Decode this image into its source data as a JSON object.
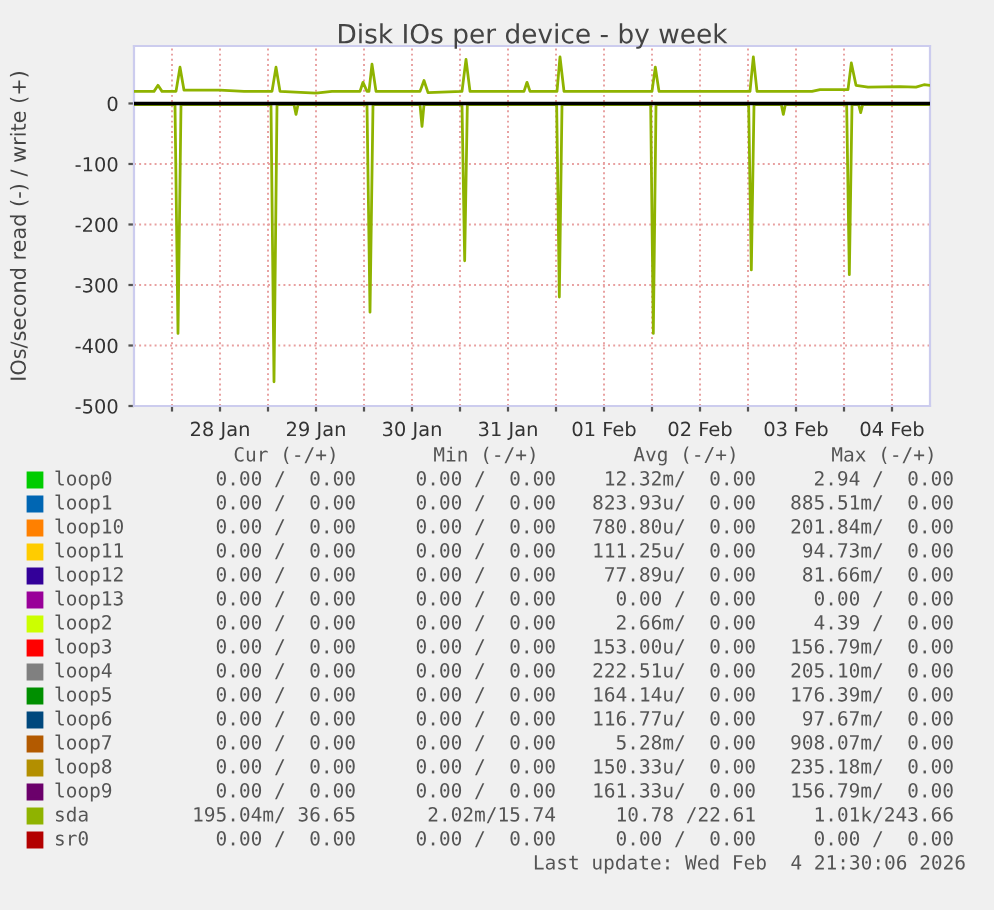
{
  "chart_data": {
    "type": "line",
    "title": "Disk IOs per device - by week",
    "ylabel": "IOs/second read (-) / write (+)",
    "xlim": [
      "2026-01-27T14:30",
      "2026-02-04T21:30"
    ],
    "xticks": [
      {
        "value": "2026-01-28T00:00",
        "label": null
      },
      {
        "value": "2026-01-28T12:00",
        "label": "28 Jan"
      },
      {
        "value": "2026-01-29T00:00",
        "label": null
      },
      {
        "value": "2026-01-29T12:00",
        "label": "29 Jan"
      },
      {
        "value": "2026-01-30T00:00",
        "label": null
      },
      {
        "value": "2026-01-30T12:00",
        "label": "30 Jan"
      },
      {
        "value": "2026-01-31T00:00",
        "label": null
      },
      {
        "value": "2026-01-31T12:00",
        "label": "31 Jan"
      },
      {
        "value": "2026-02-01T00:00",
        "label": null
      },
      {
        "value": "2026-02-01T12:00",
        "label": "01 Feb"
      },
      {
        "value": "2026-02-02T00:00",
        "label": null
      },
      {
        "value": "2026-02-02T12:00",
        "label": "02 Feb"
      },
      {
        "value": "2026-02-03T00:00",
        "label": null
      },
      {
        "value": "2026-02-03T12:00",
        "label": "03 Feb"
      },
      {
        "value": "2026-02-04T00:00",
        "label": null
      },
      {
        "value": "2026-02-04T12:00",
        "label": "04 Feb"
      }
    ],
    "ylim": [
      -500,
      95
    ],
    "yticks": [
      -500,
      -400,
      -300,
      -200,
      -100,
      0
    ],
    "grid": true,
    "legend": "bottom",
    "marker": "none",
    "line_style": "solid",
    "ref_lines": [
      {
        "axis": "y",
        "value": 0,
        "color": "#000000"
      }
    ],
    "series": [
      {
        "name": "loop0",
        "color": "#00cc00"
      },
      {
        "name": "loop1",
        "color": "#0066b3"
      },
      {
        "name": "loop10",
        "color": "#ff8000"
      },
      {
        "name": "loop11",
        "color": "#ffcc00"
      },
      {
        "name": "loop12",
        "color": "#330099"
      },
      {
        "name": "loop13",
        "color": "#990099"
      },
      {
        "name": "loop2",
        "color": "#ccff00"
      },
      {
        "name": "loop3",
        "color": "#ff0000"
      },
      {
        "name": "loop4",
        "color": "#808080"
      },
      {
        "name": "loop5",
        "color": "#008f00"
      },
      {
        "name": "loop6",
        "color": "#00487d"
      },
      {
        "name": "loop7",
        "color": "#b35a00"
      },
      {
        "name": "loop8",
        "color": "#b38f00"
      },
      {
        "name": "loop9",
        "color": "#6b006b"
      },
      {
        "name": "sda",
        "color": "#8fb300",
        "x": [
          "2026-01-27T14:30",
          "2026-01-28T00:45",
          "2026-01-28T01:30",
          "2026-01-28T02:15",
          "2026-01-29T00:45",
          "2026-01-29T01:30",
          "2026-01-29T02:15",
          "2026-01-29T06:30",
          "2026-01-29T07:00",
          "2026-01-29T07:30",
          "2026-01-30T00:45",
          "2026-01-30T01:30",
          "2026-01-30T02:15",
          "2026-01-30T14:00",
          "2026-01-30T14:30",
          "2026-01-30T15:00",
          "2026-01-31T00:30",
          "2026-01-31T01:10",
          "2026-01-31T01:50",
          "2026-02-01T00:10",
          "2026-02-01T00:50",
          "2026-02-01T01:30",
          "2026-02-01T23:40",
          "2026-02-02T00:20",
          "2026-02-02T01:00",
          "2026-02-03T00:10",
          "2026-02-03T00:50",
          "2026-02-03T01:30",
          "2026-02-03T08:20",
          "2026-02-03T08:50",
          "2026-02-03T09:20",
          "2026-02-04T00:40",
          "2026-02-04T01:20",
          "2026-02-04T02:00",
          "2026-02-04T03:40",
          "2026-02-04T04:10",
          "2026-02-04T04:40",
          "2026-02-04T21:30"
        ],
        "values": [
          -2,
          -2,
          -380,
          -2,
          -2,
          -460,
          -2,
          -2,
          -18,
          -2,
          -2,
          -345,
          -2,
          -2,
          -38,
          -2,
          -2,
          -260,
          -2,
          -2,
          -320,
          -2,
          -2,
          -380,
          -2,
          -2,
          -275,
          -2,
          -2,
          -18,
          -2,
          -2,
          -283,
          -2,
          -2,
          -15,
          -2,
          -2
        ]
      },
      {
        "color": "#8fb300",
        "x": [
          "2026-01-27T14:30",
          "2026-01-27T19:30",
          "2026-01-27T20:30",
          "2026-01-27T21:30",
          "2026-01-28T01:00",
          "2026-01-28T02:00",
          "2026-01-28T03:00",
          "2026-01-28T12:00",
          "2026-01-28T18:00",
          "2026-01-29T01:00",
          "2026-01-29T02:00",
          "2026-01-29T03:00",
          "2026-01-29T12:00",
          "2026-01-29T16:00",
          "2026-01-29T23:00",
          "2026-01-29T23:45",
          "2026-01-30T00:45",
          "2026-01-30T01:15",
          "2026-01-30T02:00",
          "2026-01-30T03:00",
          "2026-01-30T14:00",
          "2026-01-30T15:00",
          "2026-01-30T16:00",
          "2026-01-31T00:30",
          "2026-01-31T01:30",
          "2026-01-31T02:30",
          "2026-01-31T16:00",
          "2026-01-31T16:45",
          "2026-01-31T17:30",
          "2026-02-01T00:15",
          "2026-02-01T01:00",
          "2026-02-01T02:00",
          "2026-02-02T00:00",
          "2026-02-02T00:50",
          "2026-02-02T01:45",
          "2026-02-03T00:30",
          "2026-02-03T01:20",
          "2026-02-03T02:15",
          "2026-02-03T16:00",
          "2026-02-03T18:00",
          "2026-02-04T01:00",
          "2026-02-04T01:50",
          "2026-02-04T03:00",
          "2026-02-04T06:00",
          "2026-02-04T14:00",
          "2026-02-04T18:00",
          "2026-02-04T20:00",
          "2026-02-04T21:30"
        ],
        "values": [
          20,
          20,
          30,
          20,
          20,
          60,
          22,
          22,
          20,
          20,
          60,
          20,
          17,
          20,
          20,
          35,
          20,
          20,
          65,
          20,
          20,
          38,
          18,
          20,
          73,
          20,
          20,
          35,
          20,
          20,
          77,
          20,
          20,
          60,
          20,
          20,
          77,
          20,
          20,
          23,
          23,
          67,
          30,
          27,
          28,
          27,
          31,
          30
        ]
      },
      {
        "name": "sr0",
        "color": "#b30000"
      }
    ],
    "annotations": [
      "Cur (-/+)",
      "Min (-/+)",
      "Avg (-/+)",
      "Max (-/+)",
      "0.00 /  0.00",
      "0.00 /  0.00",
      "12.32m/  0.00",
      "2.94 /  0.00",
      "0.00 /  0.00",
      "0.00 /  0.00",
      "823.93u/  0.00",
      "885.51m/  0.00",
      "0.00 /  0.00",
      "0.00 /  0.00",
      "780.80u/  0.00",
      "201.84m/  0.00",
      "0.00 /  0.00",
      "0.00 /  0.00",
      "111.25u/  0.00",
      "94.73m/  0.00",
      "0.00 /  0.00",
      "0.00 /  0.00",
      "77.89u/  0.00",
      "81.66m/  0.00",
      "0.00 /  0.00",
      "0.00 /  0.00",
      "0.00 /  0.00",
      "0.00 /  0.00",
      "0.00 /  0.00",
      "0.00 /  0.00",
      "2.66m/  0.00",
      "4.39 /  0.00",
      "0.00 /  0.00",
      "0.00 /  0.00",
      "153.00u/  0.00",
      "156.79m/  0.00",
      "0.00 /  0.00",
      "0.00 /  0.00",
      "222.51u/  0.00",
      "205.10m/  0.00",
      "0.00 /  0.00",
      "0.00 /  0.00",
      "164.14u/  0.00",
      "176.39m/  0.00",
      "0.00 /  0.00",
      "0.00 /  0.00",
      "116.77u/  0.00",
      "97.67m/  0.00",
      "0.00 /  0.00",
      "0.00 /  0.00",
      "5.28m/  0.00",
      "908.07m/  0.00",
      "0.00 /  0.00",
      "0.00 /  0.00",
      "150.33u/  0.00",
      "235.18m/  0.00",
      "0.00 /  0.00",
      "0.00 /  0.00",
      "161.33u/  0.00",
      "156.79m/  0.00",
      "195.04m/ 36.65",
      "2.02m/15.74",
      "10.78 /22.61",
      "1.01k/243.66",
      "0.00 /  0.00",
      "0.00 /  0.00",
      "0.00 /  0.00",
      "0.00 /  0.00",
      "Last update: Wed Feb  4 21:30:06 2026"
    ]
  }
}
